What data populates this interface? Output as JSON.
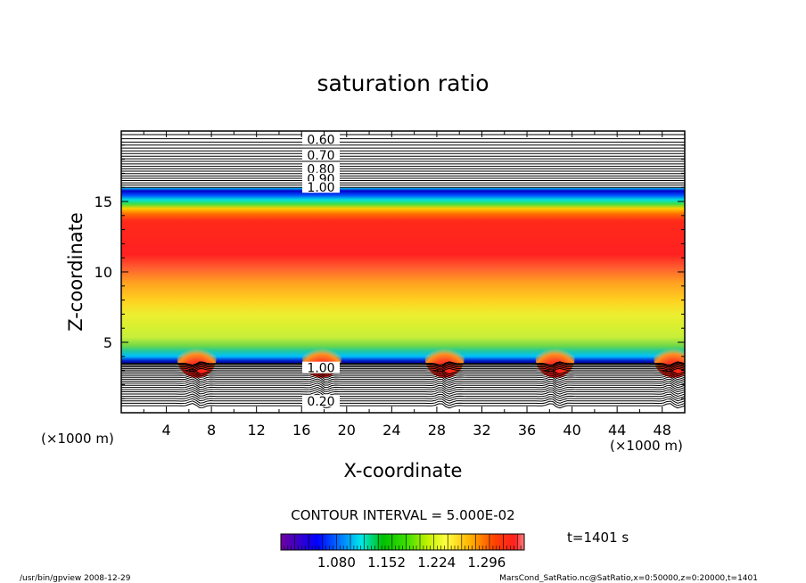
{
  "chart_data": {
    "type": "heatmap",
    "title": "saturation ratio",
    "xlabel": "X-coordinate",
    "ylabel": "Z-coordinate",
    "x_unit_left": "(×1000 m)",
    "x_unit_right": "(×1000 m)",
    "xlim": [
      0,
      50
    ],
    "ylim": [
      0,
      20
    ],
    "x_ticks": [
      "4",
      "8",
      "12",
      "16",
      "20",
      "24",
      "28",
      "32",
      "36",
      "40",
      "44",
      "48"
    ],
    "y_ticks": [
      "5",
      "10",
      "15"
    ],
    "contour_interval_text": "CONTOUR INTERVAL = 5.000E-02",
    "time_text": "t=1401 s",
    "colorbar_labels": [
      "1.080",
      "1.152",
      "1.224",
      "1.296"
    ],
    "colorbar_range": [
      1.0,
      1.35
    ],
    "upper_contour_labels": [
      "0.60",
      "0.70",
      "0.80",
      "0.90",
      "1.00"
    ],
    "upper_contour_z": [
      19.4,
      18.3,
      17.3,
      16.6,
      16.0
    ],
    "lower_contour_labels": [
      "1.00",
      "0.20"
    ],
    "lower_contour_z": [
      3.5,
      0.5
    ],
    "cloud_bumps_x": [
      6.7,
      17.8,
      28.7,
      38.5,
      49.0
    ],
    "footer_left": "/usr/bin/gpview   2008-12-29",
    "footer_right": "MarsCond_SatRatio.nc@SatRatio,x=0:50000,z=0:20000,t=1401"
  }
}
